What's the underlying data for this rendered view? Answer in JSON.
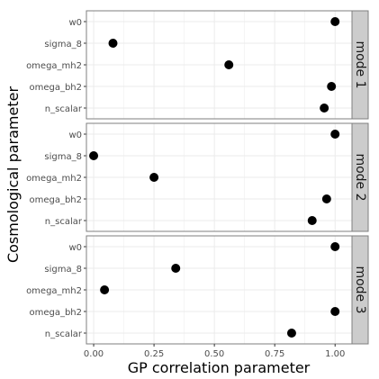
{
  "chart_data": {
    "type": "scatter",
    "xlabel": "GP correlation parameter",
    "ylabel": "Cosmological parameter",
    "xlim": [
      -0.03,
      1.07
    ],
    "x_ticks": [
      0.0,
      0.25,
      0.5,
      0.75,
      1.0
    ],
    "x_tick_labels": [
      "0.00",
      "0.25",
      "0.50",
      "0.75",
      "1.00"
    ],
    "categories": [
      "w0",
      "sigma_8",
      "omega_mh2",
      "omega_bh2",
      "n_scalar"
    ],
    "grid": true,
    "facets": [
      {
        "label": "mode 1",
        "values": [
          {
            "parameter": "w0",
            "x": 1.0
          },
          {
            "parameter": "sigma_8",
            "x": 0.08
          },
          {
            "parameter": "omega_mh2",
            "x": 0.56
          },
          {
            "parameter": "omega_bh2",
            "x": 0.985
          },
          {
            "parameter": "n_scalar",
            "x": 0.955
          }
        ]
      },
      {
        "label": "mode 2",
        "values": [
          {
            "parameter": "w0",
            "x": 1.0
          },
          {
            "parameter": "sigma_8",
            "x": 0.0
          },
          {
            "parameter": "omega_mh2",
            "x": 0.25
          },
          {
            "parameter": "omega_bh2",
            "x": 0.965
          },
          {
            "parameter": "n_scalar",
            "x": 0.905
          }
        ]
      },
      {
        "label": "mode 3",
        "values": [
          {
            "parameter": "w0",
            "x": 1.0
          },
          {
            "parameter": "sigma_8",
            "x": 0.34
          },
          {
            "parameter": "omega_mh2",
            "x": 0.045
          },
          {
            "parameter": "omega_bh2",
            "x": 1.0
          },
          {
            "parameter": "n_scalar",
            "x": 0.82
          }
        ]
      }
    ],
    "colors": {
      "point": "#000000",
      "panel_border": "#7f7f7f",
      "strip_fill": "#cccccc",
      "grid": "#ebebeb"
    }
  }
}
